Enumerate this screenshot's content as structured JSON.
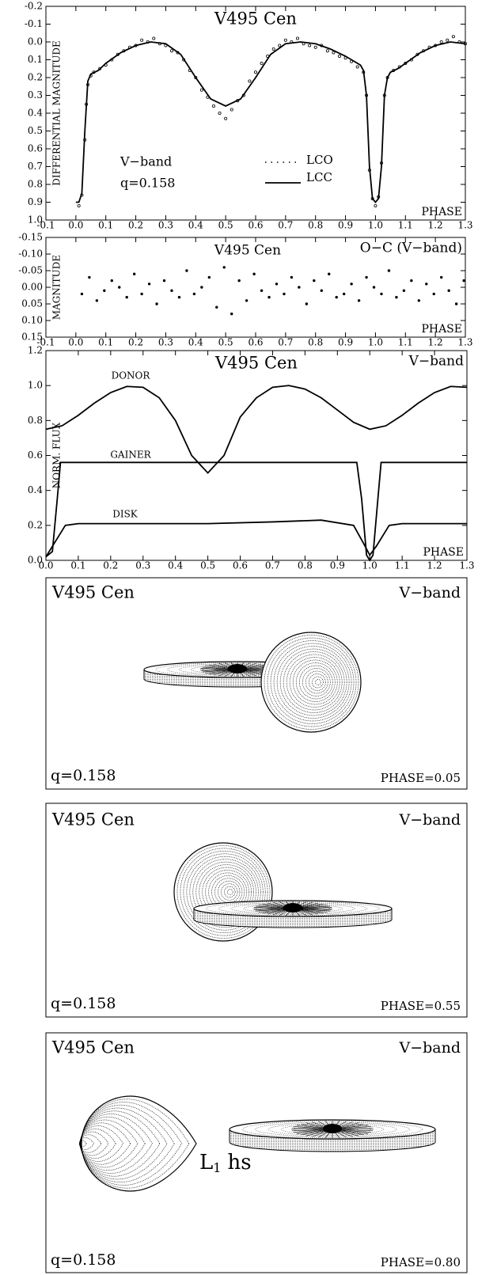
{
  "chart_data": [
    {
      "type": "line",
      "title": "V495 Cen",
      "y_label": "DIFFERENTIAL MAGNITUDE",
      "x_label": "PHASE",
      "annotations": [
        "V−band",
        "q=0.158"
      ],
      "legend": "lower-center",
      "xlim": [
        -0.1,
        1.3
      ],
      "xticks": [
        -0.1,
        {
          "value": 0,
          "label": "0.0"
        },
        0.1,
        0.2,
        0.3,
        0.4,
        0.5,
        0.6,
        0.7,
        0.8,
        0.9,
        {
          "value": 1,
          "label": "1.0"
        },
        1.1,
        1.2,
        1.3
      ],
      "ylim": [
        1.0,
        -0.2
      ],
      "yticks": [
        -0.2,
        -0.1,
        {
          "value": 0,
          "label": "0.0"
        },
        0.1,
        0.2,
        0.3,
        0.4,
        0.5,
        0.6,
        0.7,
        0.8,
        0.9,
        {
          "value": 1,
          "label": "1.0"
        }
      ],
      "series": [
        {
          "name": "LCO",
          "mode": "markers",
          "marker_open": true,
          "color": "#000000",
          "x": [
            0.01,
            0.02,
            0.03,
            0.035,
            0.04,
            0.05,
            0.06,
            0.08,
            0.1,
            0.12,
            0.14,
            0.16,
            0.18,
            0.2,
            0.22,
            0.24,
            0.26,
            0.28,
            0.3,
            0.32,
            0.34,
            0.36,
            0.38,
            0.4,
            0.42,
            0.44,
            0.46,
            0.48,
            0.5,
            0.52,
            0.54,
            0.56,
            0.58,
            0.6,
            0.62,
            0.64,
            0.66,
            0.68,
            0.7,
            0.72,
            0.74,
            0.76,
            0.78,
            0.8,
            0.82,
            0.84,
            0.86,
            0.88,
            0.9,
            0.92,
            0.94,
            0.96,
            0.97,
            0.98,
            0.99,
            1.0,
            1.01,
            1.02,
            1.03,
            1.04,
            1.06,
            1.08,
            1.1,
            1.12,
            1.14,
            1.16,
            1.18,
            1.2,
            1.22,
            1.24,
            1.26,
            1.28,
            1.3
          ],
          "values": [
            0.92,
            0.86,
            0.55,
            0.35,
            0.24,
            0.19,
            0.17,
            0.15,
            0.13,
            0.1,
            0.07,
            0.05,
            0.03,
            0.02,
            -0.01,
            0.0,
            -0.02,
            0.01,
            0.02,
            0.05,
            0.06,
            0.1,
            0.16,
            0.2,
            0.27,
            0.31,
            0.36,
            0.4,
            0.43,
            0.38,
            0.33,
            0.3,
            0.22,
            0.17,
            0.12,
            0.08,
            0.04,
            0.02,
            -0.01,
            0.0,
            -0.02,
            0.01,
            0.02,
            0.03,
            0.02,
            0.05,
            0.06,
            0.08,
            0.09,
            0.11,
            0.14,
            0.17,
            0.3,
            0.72,
            0.88,
            0.92,
            0.87,
            0.68,
            0.3,
            0.2,
            0.16,
            0.14,
            0.12,
            0.1,
            0.07,
            0.05,
            0.03,
            0.02,
            0.0,
            -0.01,
            -0.03,
            0.0,
            0.01
          ]
        },
        {
          "name": "LCC",
          "mode": "line",
          "color": "#000000",
          "x": [
            0.0,
            0.01,
            0.02,
            0.03,
            0.04,
            0.05,
            0.075,
            0.1,
            0.15,
            0.2,
            0.25,
            0.3,
            0.35,
            0.4,
            0.45,
            0.5,
            0.55,
            0.6,
            0.65,
            0.7,
            0.75,
            0.8,
            0.85,
            0.9,
            0.95,
            0.96,
            0.97,
            0.98,
            0.99,
            1.0,
            1.01,
            1.02,
            1.03,
            1.04,
            1.05,
            1.075,
            1.1,
            1.15,
            1.2,
            1.25,
            1.3
          ],
          "values": [
            0.9,
            0.9,
            0.85,
            0.5,
            0.22,
            0.18,
            0.16,
            0.12,
            0.06,
            0.02,
            0.0,
            0.01,
            0.07,
            0.2,
            0.32,
            0.36,
            0.32,
            0.2,
            0.07,
            0.01,
            0.0,
            0.01,
            0.04,
            0.08,
            0.13,
            0.16,
            0.3,
            0.7,
            0.88,
            0.9,
            0.88,
            0.7,
            0.3,
            0.2,
            0.17,
            0.15,
            0.12,
            0.06,
            0.02,
            0.0,
            0.01
          ]
        }
      ]
    },
    {
      "type": "scatter",
      "title": "V495 Cen",
      "subtitle": "O−C (V−band)",
      "y_label": "MAGNITUDE",
      "x_label": "PHASE",
      "xlim": [
        -0.1,
        1.3
      ],
      "xticks": [
        -0.1,
        {
          "value": 0,
          "label": "0.0"
        },
        0.1,
        0.2,
        0.3,
        0.4,
        0.5,
        0.6,
        0.7,
        0.8,
        0.9,
        {
          "value": 1,
          "label": "1.0"
        },
        1.1,
        1.2,
        1.3
      ],
      "ylim": [
        0.15,
        -0.15
      ],
      "yticks": [
        -0.15,
        {
          "value": -0.1,
          "label": "-0.10"
        },
        -0.05,
        {
          "value": 0,
          "label": "0.00"
        },
        0.05,
        {
          "value": 0.1,
          "label": "0.10"
        },
        0.15
      ],
      "series": [
        {
          "mode": "markers",
          "color": "#000000",
          "x": [
            0.02,
            0.045,
            0.07,
            0.095,
            0.12,
            0.145,
            0.17,
            0.195,
            0.22,
            0.245,
            0.27,
            0.295,
            0.32,
            0.345,
            0.37,
            0.395,
            0.42,
            0.445,
            0.47,
            0.495,
            0.52,
            0.545,
            0.57,
            0.595,
            0.62,
            0.645,
            0.67,
            0.695,
            0.72,
            0.745,
            0.77,
            0.795,
            0.82,
            0.845,
            0.87,
            0.895,
            0.92,
            0.945,
            0.97,
            0.995,
            1.02,
            1.045,
            1.07,
            1.095,
            1.12,
            1.145,
            1.17,
            1.195,
            1.22,
            1.245,
            1.27,
            1.295
          ],
          "values": [
            0.02,
            -0.03,
            0.04,
            0.01,
            -0.02,
            0.0,
            0.03,
            -0.04,
            0.02,
            -0.01,
            0.05,
            -0.02,
            0.01,
            0.03,
            -0.05,
            0.02,
            0.0,
            -0.03,
            0.06,
            -0.06,
            0.08,
            -0.02,
            0.04,
            -0.04,
            0.01,
            0.03,
            -0.01,
            0.02,
            -0.03,
            0.0,
            0.05,
            -0.02,
            0.01,
            -0.04,
            0.03,
            0.02,
            -0.01,
            0.04,
            -0.03,
            0.0,
            0.02,
            -0.05,
            0.03,
            0.01,
            -0.02,
            0.04,
            -0.01,
            0.02,
            -0.03,
            0.01,
            0.05,
            -0.02
          ]
        }
      ]
    },
    {
      "type": "line",
      "title": "V495 Cen",
      "subtitle": "V−band",
      "y_label": "NORM. FLUX",
      "x_label": "PHASE",
      "xlim": [
        0,
        1.3
      ],
      "xticks": [
        {
          "value": 0,
          "label": "0.0"
        },
        0.1,
        0.2,
        0.3,
        0.4,
        0.5,
        0.6,
        0.7,
        0.8,
        0.9,
        {
          "value": 1,
          "label": "1.0"
        },
        1.1,
        1.2,
        1.3
      ],
      "ylim": [
        0,
        1.2
      ],
      "yticks": [
        {
          "value": 0,
          "label": "0.0"
        },
        0.2,
        0.4,
        0.6,
        0.8,
        {
          "value": 1,
          "label": "1.0"
        },
        1.2
      ],
      "series": [
        {
          "name": "DONOR",
          "mode": "line",
          "color": "#000000",
          "x": [
            0,
            0.05,
            0.1,
            0.15,
            0.2,
            0.25,
            0.3,
            0.35,
            0.4,
            0.45,
            0.5,
            0.55,
            0.6,
            0.65,
            0.7,
            0.75,
            0.8,
            0.85,
            0.9,
            0.95,
            1.0,
            1.05,
            1.1,
            1.15,
            1.2,
            1.25,
            1.3
          ],
          "values": [
            0.75,
            0.77,
            0.83,
            0.9,
            0.96,
            0.995,
            0.99,
            0.93,
            0.8,
            0.6,
            0.5,
            0.6,
            0.82,
            0.93,
            0.99,
            1.0,
            0.98,
            0.93,
            0.86,
            0.79,
            0.75,
            0.77,
            0.83,
            0.9,
            0.96,
            0.995,
            0.99
          ]
        },
        {
          "name": "GAINER",
          "mode": "line",
          "color": "#000000",
          "x": [
            0.0,
            0.02,
            0.035,
            0.045,
            0.5,
            0.96,
            0.975,
            0.99,
            1.0,
            1.01,
            1.025,
            1.035,
            1.3
          ],
          "values": [
            0.02,
            0.05,
            0.35,
            0.56,
            0.56,
            0.56,
            0.35,
            0.03,
            0.0,
            0.03,
            0.35,
            0.56,
            0.56
          ]
        },
        {
          "name": "DISK",
          "mode": "line",
          "color": "#000000",
          "x": [
            0,
            0.02,
            0.04,
            0.06,
            0.1,
            0.5,
            0.7,
            0.85,
            0.95,
            0.98,
            1.0,
            1.02,
            1.04,
            1.06,
            1.1,
            1.3
          ],
          "values": [
            0.02,
            0.08,
            0.14,
            0.2,
            0.21,
            0.21,
            0.22,
            0.23,
            0.2,
            0.1,
            0.03,
            0.08,
            0.14,
            0.2,
            0.21,
            0.21
          ]
        }
      ]
    }
  ],
  "diagrams": [
    {
      "title": "V495 Cen",
      "band": "V−band",
      "q": "q=0.158",
      "phase": "PHASE=0.05"
    },
    {
      "title": "V495 Cen",
      "band": "V−band",
      "q": "q=0.158",
      "phase": "PHASE=0.55"
    },
    {
      "title": "V495 Cen",
      "band": "V−band",
      "q": "q=0.158",
      "phase": "PHASE=0.80",
      "point_label": {
        "main": "L",
        "sub": "1",
        "rest": "hs"
      }
    }
  ]
}
